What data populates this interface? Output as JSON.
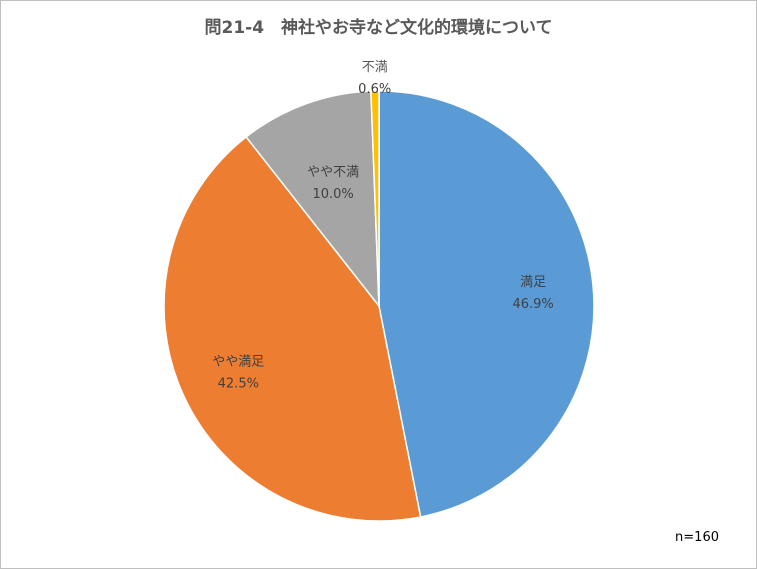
{
  "chart_data": {
    "type": "pie",
    "title": "問21-4　神社やお寺など文化的環境について",
    "slices": [
      {
        "label": "満足",
        "value": 46.9,
        "value_text": "46.9%",
        "color": "#5B9BD5"
      },
      {
        "label": "やや満足",
        "value": 42.5,
        "value_text": "42.5%",
        "color": "#ED7D31"
      },
      {
        "label": "やや不満",
        "value": 10.0,
        "value_text": "10.0%",
        "color": "#A5A5A5"
      },
      {
        "label": "不満",
        "value": 0.6,
        "value_text": "0.6%",
        "color": "#FFC000"
      }
    ],
    "note": "n=160",
    "legend": "none"
  }
}
